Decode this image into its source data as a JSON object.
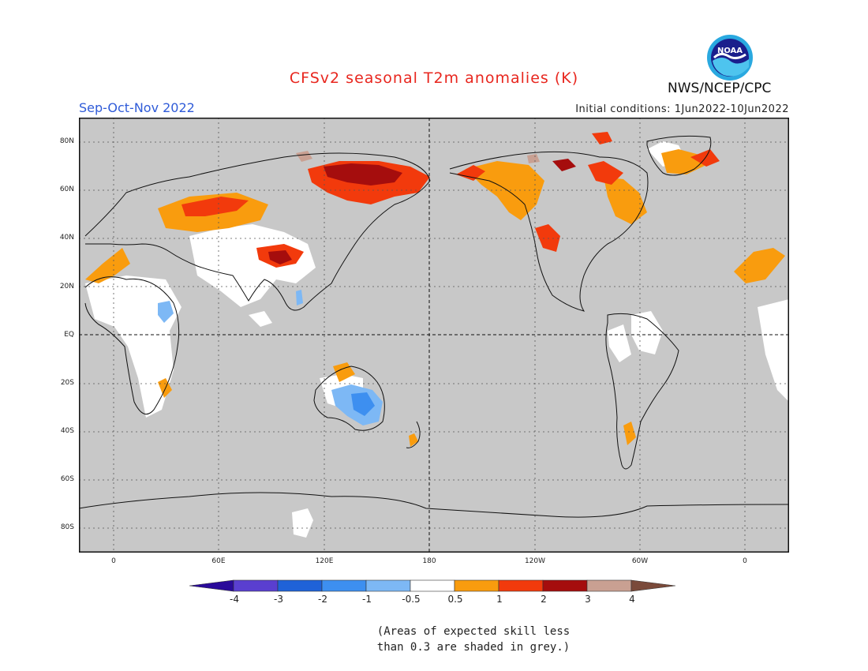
{
  "header": {
    "title": "CFSv2 seasonal T2m anomalies (K)",
    "season": "Sep-Oct-Nov 2022",
    "initial_conditions": "Initial conditions: 1Jun2022-10Jun2022",
    "agency": "NWS/NCEP/CPC",
    "logo_text": "NOAA",
    "logo_icon": "noaa-logo-icon"
  },
  "map": {
    "projection": "cylindrical equidistant, Pacific-centered",
    "lat_labels": [
      "80N",
      "60N",
      "40N",
      "20N",
      "EQ",
      "20S",
      "40S",
      "60S",
      "80S"
    ],
    "lon_labels": [
      "0",
      "60E",
      "120E",
      "180",
      "120W",
      "60W",
      "0"
    ],
    "background_color": "#c8c8c8",
    "grid": "dotted"
  },
  "colorbar": {
    "tick_labels": [
      "-4",
      "-3",
      "-2",
      "-1",
      "-0.5",
      "0.5",
      "1",
      "2",
      "3",
      "4"
    ],
    "colors": [
      "#2a0a9a",
      "#5a3fd0",
      "#1f62d8",
      "#3d8ff0",
      "#7db8f5",
      "#ffffff",
      "#f99c0e",
      "#f23a0c",
      "#a50d0d",
      "#c9a092",
      "#7a4a3a"
    ]
  },
  "notes": {
    "line1": "(Areas of expected skill less",
    "line2": "than 0.3 are shaded in grey.)"
  }
}
